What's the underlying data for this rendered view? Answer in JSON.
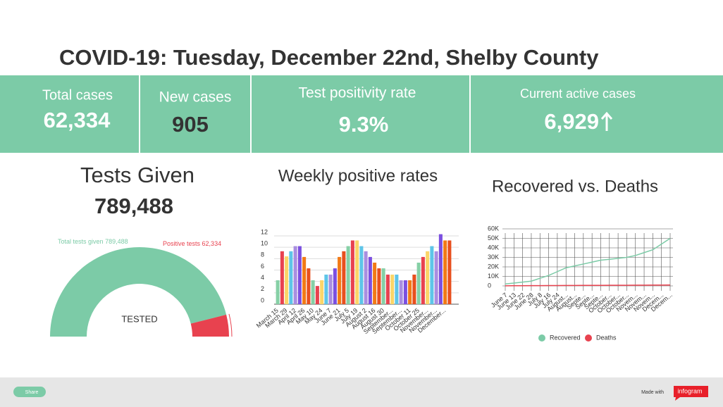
{
  "header": {
    "title": "COVID-19: Tuesday, December 22nd, Shelby County"
  },
  "stats": [
    {
      "label": "Total cases",
      "value": "62,334"
    },
    {
      "label": "New cases",
      "value": "905"
    },
    {
      "label": "Test positivity rate",
      "value": "9.3%"
    },
    {
      "label": "Current active cases",
      "value": "6,929"
    }
  ],
  "tests": {
    "label": "Tests Given",
    "value": "789,488"
  },
  "chart_data": [
    {
      "type": "gauge",
      "center_label": "TESTED",
      "categories": [
        "Total tests given",
        "Positive tests"
      ],
      "values": [
        789488,
        62334
      ],
      "value_labels": [
        "789,488",
        "62,334"
      ],
      "colors": [
        "#7ccba7",
        "#e8424f"
      ]
    },
    {
      "type": "bar",
      "title": "Weekly positive rates",
      "categories": [
        "March 15",
        null,
        "March 29",
        null,
        "April 12",
        null,
        "April 26",
        null,
        "May 10",
        null,
        "May 24",
        null,
        "June 7",
        null,
        "June 21",
        null,
        "July 5",
        null,
        "July 19",
        null,
        "August 2",
        null,
        "August 16",
        null,
        "August 30",
        null,
        "September...",
        null,
        "September...",
        null,
        "October 11",
        null,
        "October 25",
        null,
        "November...",
        null,
        "November...",
        null,
        "December...",
        null
      ],
      "values": [
        4.2,
        9.3,
        8.4,
        9.3,
        10.2,
        10.2,
        8.3,
        6.3,
        4.2,
        3.2,
        4.2,
        5.2,
        5.2,
        6.3,
        8.3,
        9.3,
        10.2,
        11.2,
        11.2,
        10.2,
        9.3,
        8.3,
        7.3,
        6.3,
        6.3,
        5.2,
        5.2,
        5.2,
        4.2,
        4.2,
        4.2,
        5.2,
        7.3,
        8.3,
        9.3,
        10.2,
        9.3,
        12.3,
        11.2,
        11.2
      ],
      "colors": [
        "#86d0a6",
        "#e8424f",
        "#fbd568",
        "#5ec5e8",
        "#a98ee0",
        "#7b4fe0",
        "#f27a16",
        "#e8501f",
        "#86d0a6",
        "#e8424f",
        "#fbd568",
        "#5ec5e8",
        "#a98ee0",
        "#7b4fe0",
        "#f27a16",
        "#e8501f",
        "#86d0a6",
        "#e8424f",
        "#fbd568",
        "#5ec5e8",
        "#a98ee0",
        "#7b4fe0",
        "#f27a16",
        "#e8501f",
        "#86d0a6",
        "#e8424f",
        "#fbd568",
        "#5ec5e8",
        "#a98ee0",
        "#7b4fe0",
        "#f27a16",
        "#e8501f",
        "#86d0a6",
        "#e8424f",
        "#fbd568",
        "#5ec5e8",
        "#a98ee0",
        "#7b4fe0",
        "#f27a16",
        "#e8501f"
      ],
      "ylim": [
        0,
        12.5
      ],
      "yticks": [
        0,
        2,
        4,
        6,
        8,
        10,
        12
      ],
      "grid": true
    },
    {
      "type": "line",
      "title": "Recovered vs. Deaths",
      "categories": [
        "June 7",
        "June 13",
        "June 22",
        "June 28",
        "July 8",
        "July 16",
        "July 24",
        "August...",
        "August...",
        "Septe...",
        "Septe...",
        "Septe...",
        "October...",
        "October...",
        "October...",
        "Novem...",
        "Novem...",
        "Novem...",
        "Decem...",
        "Decem..."
      ],
      "series": [
        {
          "name": "Recovered",
          "color": "#7ccba7",
          "values": [
            2000,
            3000,
            4000,
            5000,
            8000,
            11000,
            15000,
            19000,
            21000,
            23000,
            25000,
            27000,
            28000,
            29000,
            30000,
            32000,
            35000,
            38000,
            44000,
            50000
          ]
        },
        {
          "name": "Deaths",
          "color": "#e8424f",
          "values": [
            100,
            150,
            200,
            250,
            300,
            350,
            400,
            450,
            500,
            520,
            550,
            580,
            610,
            640,
            680,
            720,
            760,
            800,
            850,
            900
          ]
        }
      ],
      "ylim": [
        0,
        60000
      ],
      "yticks": [
        0,
        {
          "value": 10000,
          "label": "10K"
        },
        {
          "value": 20000,
          "label": "20K"
        },
        {
          "value": 30000,
          "label": "30K"
        },
        {
          "value": 40000,
          "label": "40K"
        },
        {
          "value": 50000,
          "label": "50K"
        },
        {
          "value": 60000,
          "label": "60K"
        }
      ],
      "grid": true,
      "legend": "bottom"
    }
  ],
  "footer": {
    "share": "Share",
    "made_with": "Made with",
    "brand": "infogram"
  }
}
